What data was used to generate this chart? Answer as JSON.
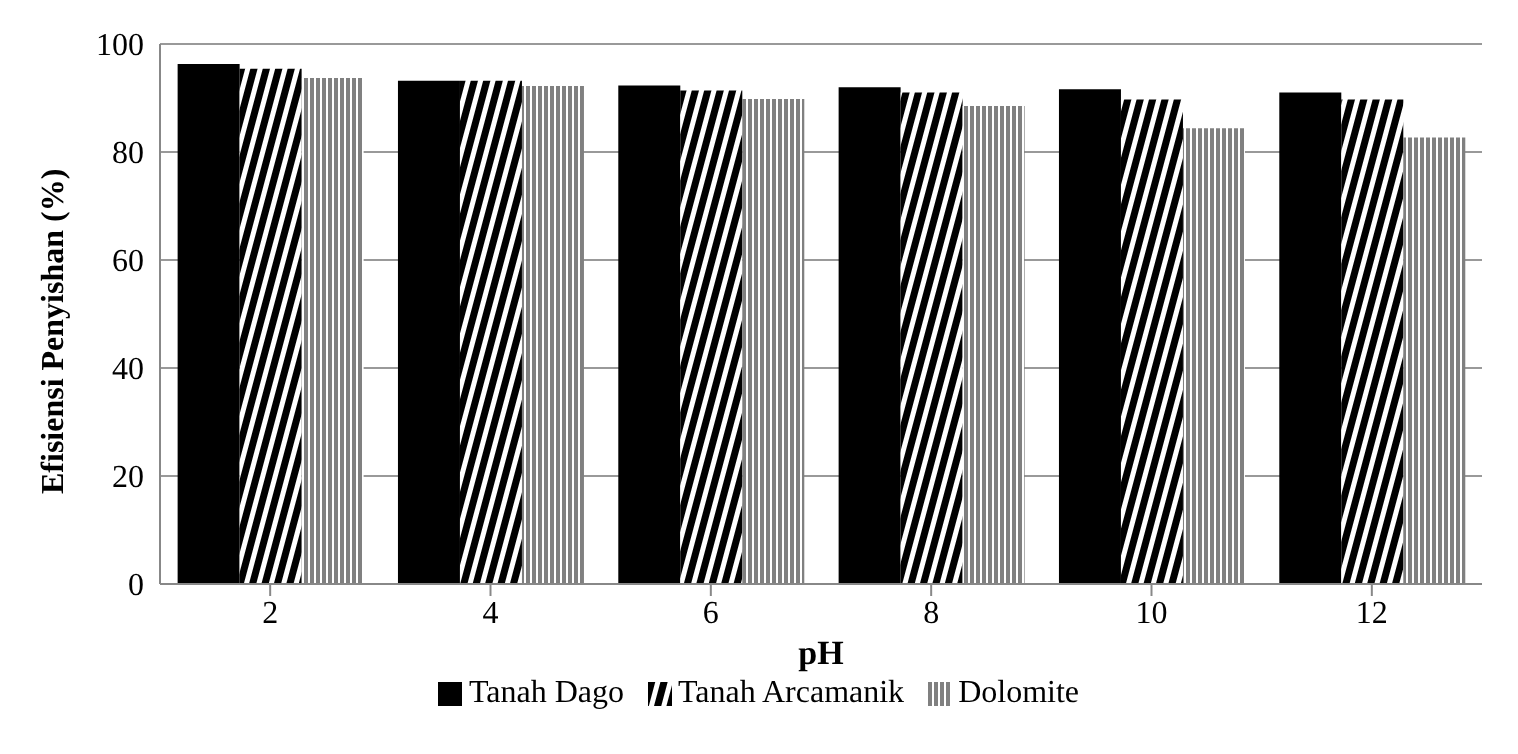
{
  "chart_data": {
    "type": "bar",
    "xlabel": "pH",
    "ylabel": "Efisiensi Penyishan (%)",
    "categories": [
      "2",
      "4",
      "6",
      "8",
      "10",
      "12"
    ],
    "series": [
      {
        "name": "Tanah Dago",
        "color": "#000000",
        "values": [
          96.3,
          93.2,
          92.3,
          92.0,
          91.6,
          91.0
        ]
      },
      {
        "name": "Tanah Arcamanik",
        "color": "#000000",
        "values": [
          95.4,
          93.2,
          91.4,
          91.0,
          89.7,
          89.7
        ]
      },
      {
        "name": "Dolomite",
        "color": "#808080",
        "values": [
          93.7,
          92.2,
          89.8,
          88.5,
          84.4,
          82.7
        ]
      }
    ],
    "ylim": [
      0,
      100
    ],
    "yticks": [
      0,
      20,
      40,
      60,
      80,
      100
    ],
    "grid": "y",
    "legend": "bottom"
  }
}
